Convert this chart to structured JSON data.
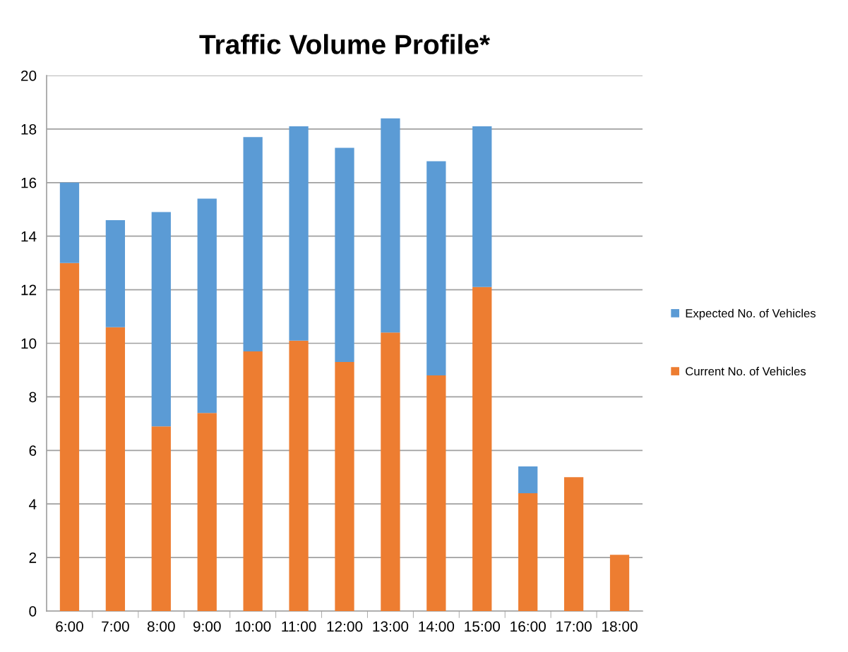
{
  "chart_data": {
    "type": "bar",
    "title": "Traffic Volume Profile*",
    "categories": [
      "6:00",
      "7:00",
      "8:00",
      "9:00",
      "10:00",
      "11:00",
      "12:00",
      "13:00",
      "14:00",
      "15:00",
      "16:00",
      "17:00",
      "18:00"
    ],
    "stacked": true,
    "series": [
      {
        "name": "Current No. of Vehicles",
        "color": "#ed7d31",
        "values": [
          13.0,
          10.6,
          6.9,
          7.4,
          9.7,
          10.1,
          9.3,
          10.4,
          8.8,
          12.1,
          4.4,
          5.0,
          2.1
        ]
      },
      {
        "name": "Expected No. of Vehicles",
        "color": "#5b9bd5",
        "values": [
          3.0,
          4.0,
          8.0,
          8.0,
          8.0,
          8.0,
          8.0,
          8.0,
          8.0,
          6.0,
          1.0,
          null,
          null
        ]
      }
    ],
    "ylim": [
      0,
      20
    ],
    "yticks": [
      0,
      2,
      4,
      6,
      8,
      10,
      12,
      14,
      16,
      18,
      20
    ],
    "grid": "y",
    "legend": "right"
  }
}
